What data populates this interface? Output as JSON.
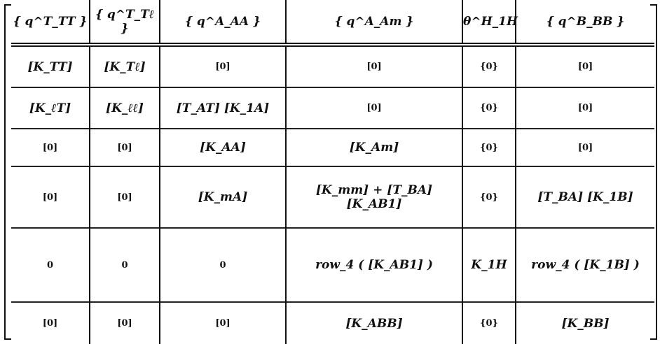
{
  "matrix": {
    "header": [
      "{ q^T_TT }",
      "{ q^T_Tℓ }",
      "{ q^A_AA }",
      "{ q^A_Am }",
      "θ^H_1H",
      "{ q^B_BB }"
    ],
    "rows": [
      [
        "[K_TT]",
        "[K_Tℓ]",
        "[0]",
        "[0]",
        "{0}",
        "[0]"
      ],
      [
        "[K_ℓT]",
        "[K_ℓℓ]",
        "[T_AT] [K_1A]",
        "[0]",
        "{0}",
        "[0]"
      ],
      [
        "[0]",
        "[0]",
        "[K_AA]",
        "[K_Am]",
        "{0}",
        "[0]"
      ],
      [
        "[0]",
        "[0]",
        "[K_mA]",
        "[K_mm] + [T_BA] [K_AB1]",
        "{0}",
        "[T_BA] [K_1B]"
      ],
      [
        "0",
        "0",
        "0",
        "row_4 ( [K_AB1] )",
        "K_1H",
        "row_4 ( [K_1B] )"
      ],
      [
        "[0]",
        "[0]",
        "[0]",
        "[K_ABB]",
        "{0}",
        "[K_BB]"
      ]
    ]
  }
}
